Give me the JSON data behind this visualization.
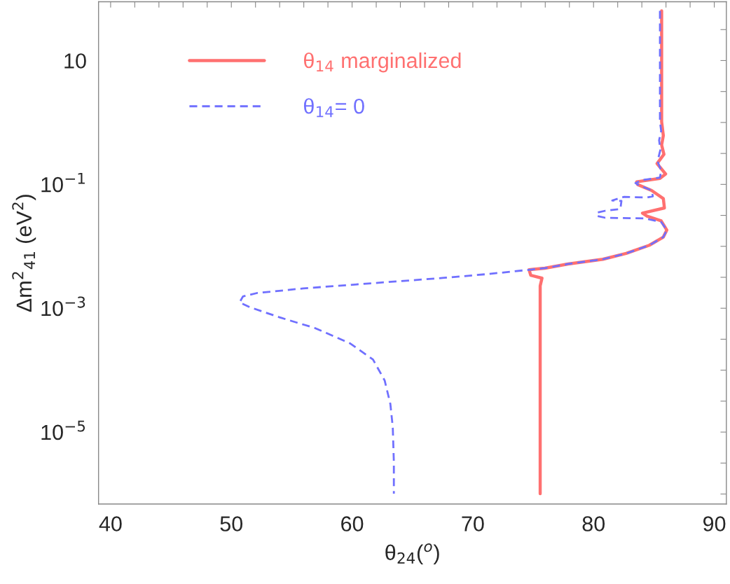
{
  "chart_data": {
    "type": "line",
    "xlabel": "θ$_{24}$($^{o}$)",
    "ylabel": "Δm$^{2}$$_{41}$ (eV$^{2}$)",
    "log": "y",
    "grid": false,
    "legend": "top left",
    "xlim": [
      39,
      91
    ],
    "ylim": [
      6.9e-07,
      89
    ],
    "xticks": [
      40,
      {
        "value": 42,
        "label": null
      },
      {
        "value": 44,
        "label": null
      },
      {
        "value": 46,
        "label": null
      },
      {
        "value": 48,
        "label": null
      },
      50,
      {
        "value": 52,
        "label": null
      },
      {
        "value": 54,
        "label": null
      },
      {
        "value": 56,
        "label": null
      },
      {
        "value": 58,
        "label": null
      },
      60,
      {
        "value": 62,
        "label": null
      },
      {
        "value": 64,
        "label": null
      },
      {
        "value": 66,
        "label": null
      },
      {
        "value": 68,
        "label": null
      },
      70,
      {
        "value": 72,
        "label": null
      },
      {
        "value": 74,
        "label": null
      },
      {
        "value": 76,
        "label": null
      },
      {
        "value": 78,
        "label": null
      },
      80,
      {
        "value": 82,
        "label": null
      },
      {
        "value": 84,
        "label": null
      },
      {
        "value": 86,
        "label": null
      },
      {
        "value": 88,
        "label": null
      },
      90
    ],
    "yticks": [
      {
        "value": 31.6,
        "label": null
      },
      10,
      {
        "value": 3.16,
        "label": null
      },
      {
        "value": 1,
        "label": null
      },
      {
        "value": 0.316,
        "label": null
      },
      {
        "value": 0.1,
        "label": "10$^{−1}$"
      },
      {
        "value": 0.0316,
        "label": null
      },
      {
        "value": 0.01,
        "label": null
      },
      {
        "value": 0.00316,
        "label": null
      },
      {
        "value": 0.001,
        "label": "10$^{−3}$"
      },
      {
        "value": 0.000316,
        "label": null
      },
      {
        "value": 0.0001,
        "label": null
      },
      {
        "value": 3.16e-05,
        "label": null
      },
      {
        "value": 1e-05,
        "label": "10$^{−5}$"
      },
      {
        "value": 3.16e-06,
        "label": null
      },
      {
        "value": 1e-06,
        "label": null
      }
    ],
    "series": [
      {
        "name": "θ$_{14}$ marginalized",
        "color": "#ff7070",
        "line_style": "solid",
        "x": [
          85.64,
          85.64,
          85.78,
          85.64,
          85.83,
          85.26,
          85.97,
          85.5,
          83.57,
          83.66,
          84.81,
          85.78,
          85.87,
          84.05,
          84.43,
          85.6,
          86.07,
          85.78,
          84.62,
          82.7,
          80.77,
          77.89,
          75.97,
          74.66,
          74.8,
          75.73,
          75.58,
          75.58
        ],
        "values": [
          63.4,
          1.03,
          0.614,
          0.433,
          0.306,
          0.217,
          0.147,
          0.125,
          0.11,
          0.0993,
          0.0798,
          0.059,
          0.0416,
          0.0344,
          0.0308,
          0.0258,
          0.0183,
          0.0141,
          0.0104,
          0.00767,
          0.00618,
          0.00519,
          0.00444,
          0.00418,
          0.0034,
          0.00306,
          0.0023,
          1.01e-06
        ]
      },
      {
        "name": "θ$_{14}$= 0",
        "color": "#7070ff",
        "line_style": "dashed",
        "x": [
          85.5,
          85.5,
          85.6,
          85.43,
          85.54,
          85.3,
          85.6,
          85.5,
          84.05,
          83.47,
          83.66,
          84.81,
          84.91,
          84.43,
          82.5,
          81.55,
          82.31,
          82.22,
          80.97,
          80.3,
          80.3,
          80.97,
          84.24,
          85.6,
          86.07,
          85.78,
          84.62,
          82.7,
          80.77,
          77.89,
          75.97,
          74.66,
          71.35,
          67.5,
          63.66,
          59.81,
          55.96,
          52.12,
          50.96,
          50.68,
          51.54,
          54.04,
          56.92,
          59.81,
          61.73,
          62.7,
          63.17,
          63.37,
          63.46,
          63.46
        ],
        "values": [
          63.4,
          1.03,
          0.728,
          0.515,
          0.364,
          0.236,
          0.167,
          0.129,
          0.118,
          0.105,
          0.0993,
          0.0798,
          0.0643,
          0.0615,
          0.0627,
          0.055,
          0.054,
          0.0399,
          0.0375,
          0.0351,
          0.0308,
          0.0289,
          0.0282,
          0.0247,
          0.0183,
          0.0141,
          0.0104,
          0.00767,
          0.00618,
          0.00519,
          0.00444,
          0.00418,
          0.00358,
          0.00308,
          0.00271,
          0.00238,
          0.00209,
          0.00176,
          0.00155,
          0.00124,
          0.00104,
          0.000708,
          0.000479,
          0.000272,
          0.000149,
          6.8e-05,
          2.85e-05,
          1.2e-05,
          3.27e-06,
          1.01e-06
        ]
      }
    ]
  }
}
